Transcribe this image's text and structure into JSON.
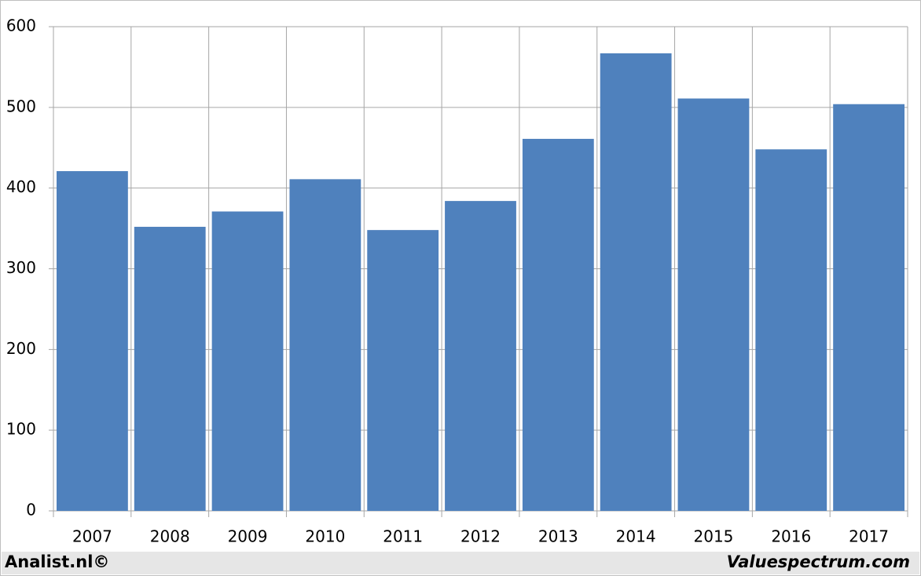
{
  "chart_data": {
    "type": "bar",
    "categories": [
      "2007",
      "2008",
      "2009",
      "2010",
      "2011",
      "2012",
      "2013",
      "2014",
      "2015",
      "2016",
      "2017"
    ],
    "values": [
      421,
      352,
      371,
      411,
      348,
      384,
      461,
      567,
      511,
      448,
      504
    ],
    "color": "#4f81bd",
    "ylim": [
      0,
      600
    ],
    "yticks": [
      0,
      100,
      200,
      300,
      400,
      500,
      600
    ],
    "grid": true
  },
  "footer": {
    "left": "Analist.nl©",
    "right": "Valuespectrum.com"
  }
}
